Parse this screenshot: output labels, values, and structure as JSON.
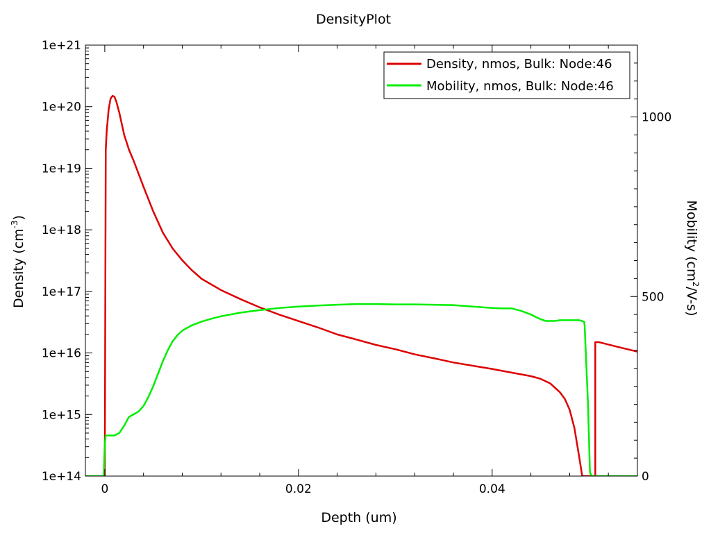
{
  "chart_data": {
    "type": "line",
    "title": "DensityPlot",
    "xlabel": "Depth (um)",
    "ylabel_left": {
      "base": "Density (cm",
      "sup": "-3",
      "tail": ")"
    },
    "ylabel_right": {
      "base": "Mobility (cm",
      "sup": "2",
      "tail": "/V-s)"
    },
    "xlim": [
      -0.002,
      0.055
    ],
    "ylim_left": [
      100000000000000.0,
      1e+21
    ],
    "ylim_right": [
      0,
      1200
    ],
    "yscale_left": "log",
    "yscale_right": "linear",
    "x_ticks": [
      {
        "value": 0,
        "label": "0"
      },
      {
        "value": 0.02,
        "label": "0.02"
      },
      {
        "value": 0.04,
        "label": "0.04"
      }
    ],
    "y_left_ticks": [
      {
        "value": 100000000000000.0,
        "label": "1e+14"
      },
      {
        "value": 1000000000000000.0,
        "label": "1e+15"
      },
      {
        "value": 1e+16,
        "label": "1e+16"
      },
      {
        "value": 1e+17,
        "label": "1e+17"
      },
      {
        "value": 1e+18,
        "label": "1e+18"
      },
      {
        "value": 1e+19,
        "label": "1e+19"
      },
      {
        "value": 1e+20,
        "label": "1e+20"
      },
      {
        "value": 1e+21,
        "label": "1e+21"
      }
    ],
    "y_right_ticks": [
      {
        "value": 0,
        "label": "0"
      },
      {
        "value": 500,
        "label": "500"
      },
      {
        "value": 1000,
        "label": "1000"
      }
    ],
    "legend_position": "top-right",
    "grid": false,
    "series": [
      {
        "name": "Density, nmos, Bulk: Node:46",
        "axis": "left",
        "color": "#dd0000",
        "x": [
          0,
          2e-05,
          0.0001,
          0.0002,
          0.0004,
          0.0006,
          0.0008,
          0.001,
          0.0012,
          0.0015,
          0.002,
          0.0025,
          0.003,
          0.004,
          0.005,
          0.006,
          0.007,
          0.008,
          0.009,
          0.01,
          0.012,
          0.014,
          0.016,
          0.018,
          0.02,
          0.022,
          0.024,
          0.026,
          0.028,
          0.03,
          0.032,
          0.034,
          0.036,
          0.038,
          0.04,
          0.042,
          0.044,
          0.045,
          0.046,
          0.047,
          0.0475,
          0.048,
          0.0485,
          0.049,
          0.0493,
          0.0496,
          0.0498,
          0.04995,
          0.04995,
          0.05065,
          0.05065,
          0.051,
          0.053,
          0.055
        ],
        "y": [
          100000000000000.0,
          1000000000000000.0,
          2e+19,
          4e+19,
          9e+19,
          1.35e+20,
          1.5e+20,
          1.45e+20,
          1.2e+20,
          8e+19,
          3.5e+19,
          2e+19,
          1.3e+19,
          5e+18,
          2e+18,
          9e+17,
          5e+17,
          3.2e+17,
          2.2e+17,
          1.6e+17,
          1.05e+17,
          7.5e+16,
          5.5e+16,
          4.2e+16,
          3.3e+16,
          2.6e+16,
          2e+16,
          1.65e+16,
          1.35e+16,
          1.15e+16,
          9500000000000000.0,
          8200000000000000.0,
          7000000000000000.0,
          6200000000000000.0,
          5500000000000000.0,
          4800000000000000.0,
          4200000000000000.0,
          3800000000000000.0,
          3200000000000000.0,
          2300000000000000.0,
          1800000000000000.0,
          1200000000000000.0,
          600000000000000.0,
          200000000000000.0,
          100000000000000.0,
          100000000000000.0,
          100000000000000.0,
          100000000000000.0,
          100000000000000.0,
          100000000000000.0,
          1.5e+16,
          1.5e+16,
          1.25e+16,
          1.05e+16
        ]
      },
      {
        "name": "Mobility, nmos, Bulk: Node:46",
        "axis": "right",
        "color": "#00ee00",
        "x": [
          -0.002,
          -0.0001,
          0,
          0.0001,
          0.001,
          0.0015,
          0.002,
          0.0025,
          0.003,
          0.0035,
          0.004,
          0.0045,
          0.005,
          0.0055,
          0.006,
          0.0065,
          0.007,
          0.0075,
          0.008,
          0.009,
          0.01,
          0.011,
          0.012,
          0.014,
          0.016,
          0.018,
          0.02,
          0.022,
          0.024,
          0.026,
          0.028,
          0.03,
          0.032,
          0.034,
          0.036,
          0.037,
          0.038,
          0.039,
          0.04,
          0.041,
          0.042,
          0.043,
          0.044,
          0.0445,
          0.045,
          0.0455,
          0.046,
          0.0465,
          0.047,
          0.048,
          0.049,
          0.0495,
          0.04955,
          0.0499,
          0.0501,
          0.0503,
          0.055
        ],
        "y": [
          0,
          0,
          90,
          113,
          113,
          120,
          140,
          165,
          172,
          180,
          195,
          220,
          250,
          285,
          320,
          350,
          375,
          392,
          405,
          420,
          430,
          438,
          445,
          455,
          462,
          468,
          472,
          475,
          477,
          479,
          479,
          478,
          478,
          477,
          476,
          474,
          472,
          470,
          468,
          467,
          467,
          460,
          450,
          443,
          437,
          432,
          432,
          432,
          434,
          434,
          434,
          430,
          420,
          200,
          10,
          0,
          0
        ]
      }
    ]
  }
}
